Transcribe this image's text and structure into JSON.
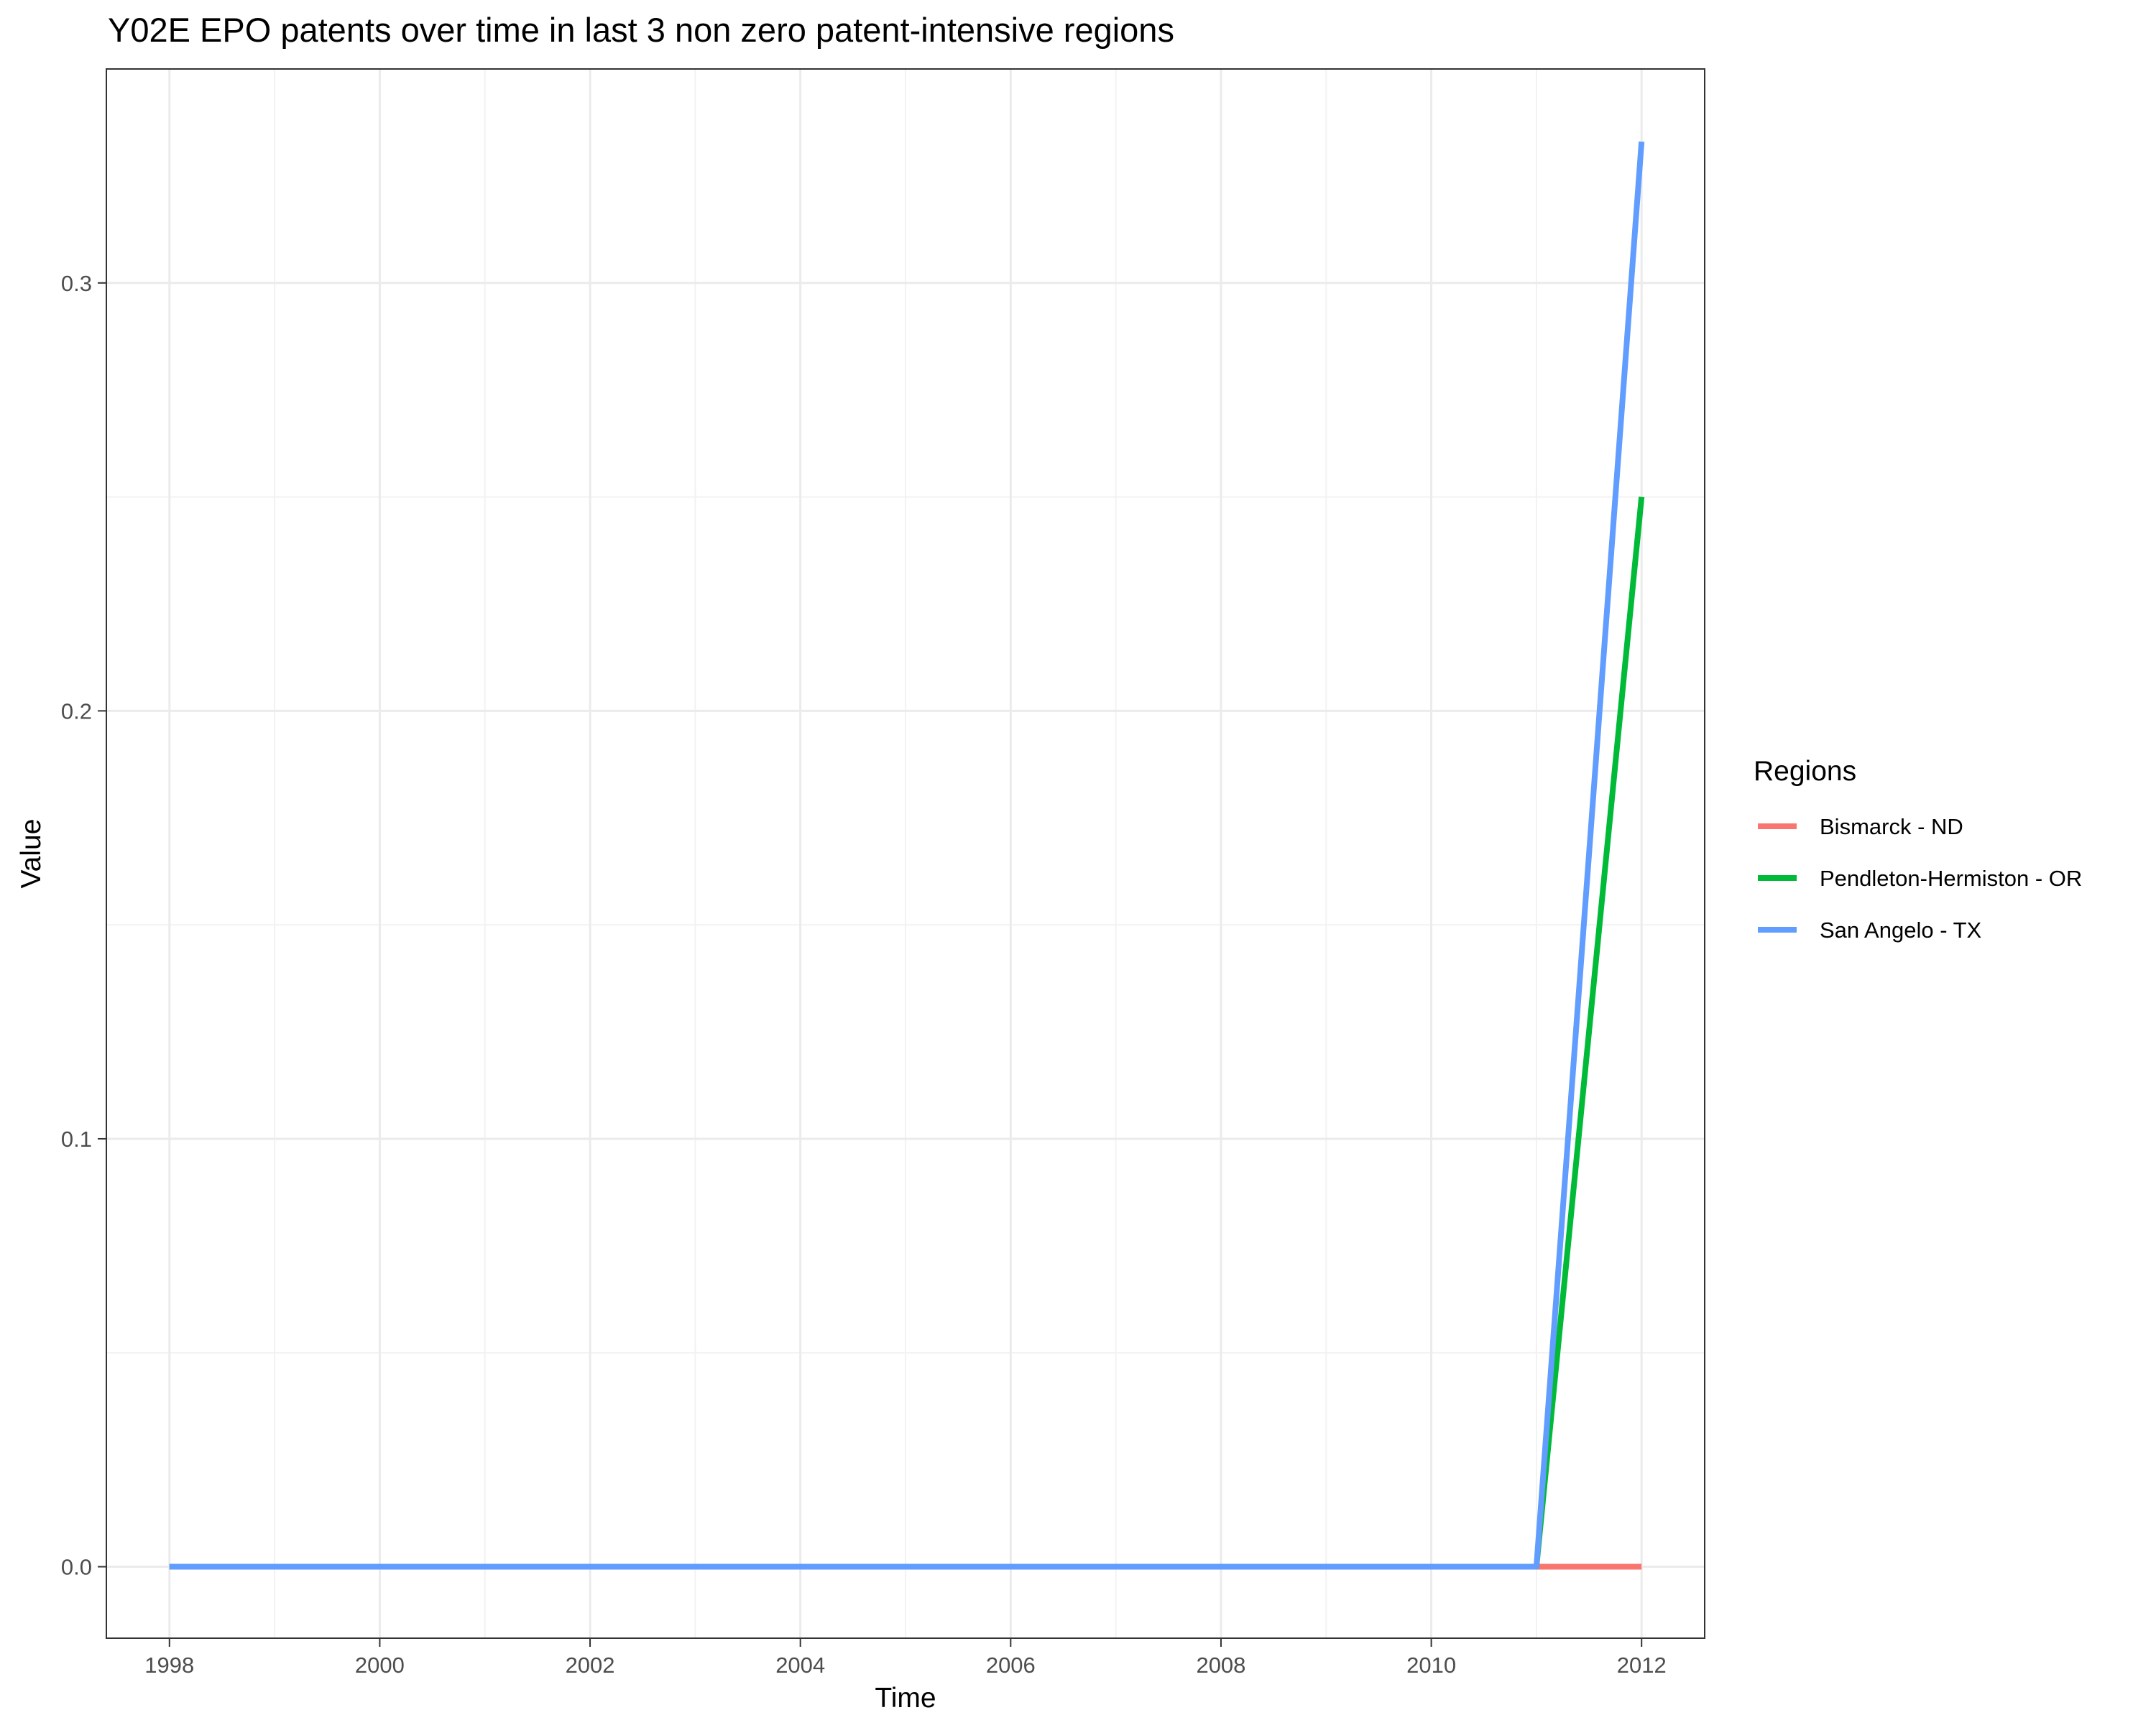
{
  "chart_data": {
    "type": "line",
    "title": "Y02E EPO patents over time in last 3 non zero patent-intensive regions",
    "xlabel": "Time",
    "ylabel": "Value",
    "x": [
      1998,
      1999,
      2000,
      2001,
      2002,
      2003,
      2004,
      2005,
      2006,
      2007,
      2008,
      2009,
      2010,
      2011,
      2012
    ],
    "xlim": [
      1997.4,
      2012.6
    ],
    "ylim": [
      -0.0167,
      0.35
    ],
    "x_ticks": [
      1998,
      2000,
      2002,
      2004,
      2006,
      2008,
      2010,
      2012
    ],
    "x_tick_labels": [
      "1998",
      "2000",
      "2002",
      "2004",
      "2006",
      "2008",
      "2010",
      "2012"
    ],
    "y_ticks": [
      0.0,
      0.1,
      0.2,
      0.3
    ],
    "y_tick_labels": [
      "0.0",
      "0.1",
      "0.2",
      "0.3"
    ],
    "y_minor_ticks": [
      0.05,
      0.15,
      0.25
    ],
    "grid": true,
    "legend": {
      "title": "Regions",
      "position": "right"
    },
    "series": [
      {
        "name": "Bismarck - ND",
        "color": "#F8766D",
        "values": [
          0,
          0,
          0,
          0,
          0,
          0,
          0,
          0,
          0,
          0,
          0,
          0,
          0,
          0,
          0
        ]
      },
      {
        "name": "Pendleton-Hermiston - OR",
        "color": "#00BA38",
        "values": [
          0,
          0,
          0,
          0,
          0,
          0,
          0,
          0,
          0,
          0,
          0,
          0,
          0,
          0,
          0.25
        ]
      },
      {
        "name": "San Angelo - TX",
        "color": "#619CFF",
        "values": [
          0,
          0,
          0,
          0,
          0,
          0,
          0,
          0,
          0,
          0,
          0,
          0,
          0,
          0,
          0.333
        ]
      }
    ]
  }
}
